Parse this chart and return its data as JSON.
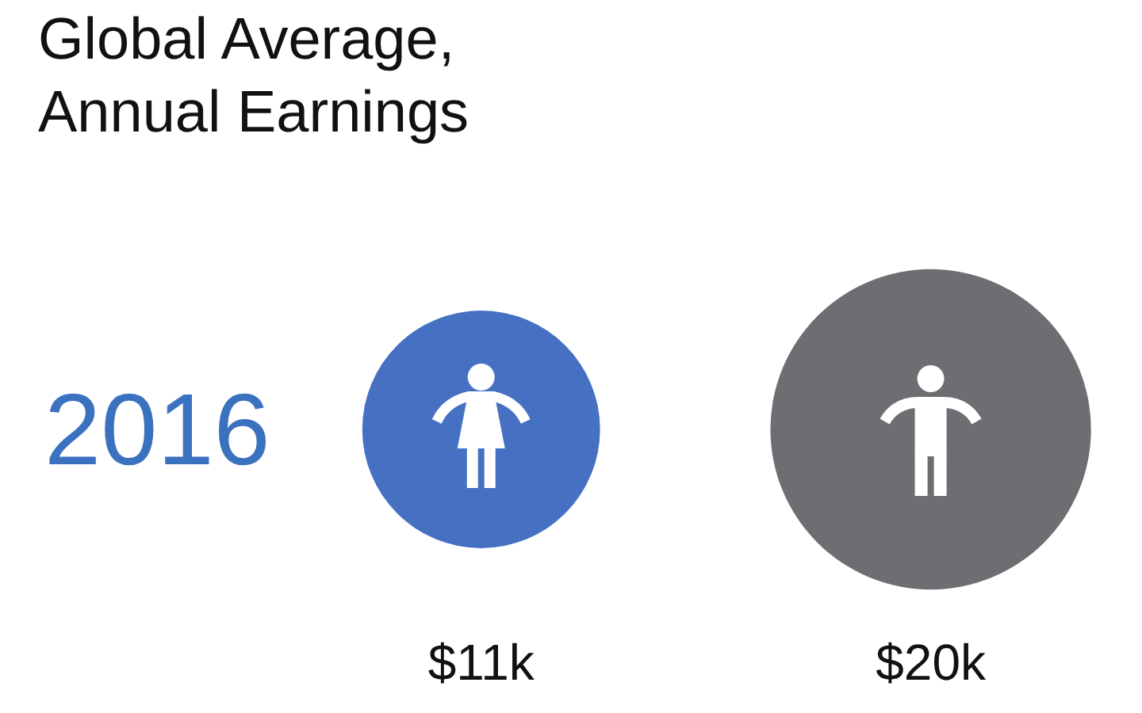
{
  "chart_data": {
    "type": "other",
    "title": "Global Average, Annual Earnings",
    "categories": [
      null,
      null
    ],
    "values": [
      11,
      20
    ],
    "value_labels": [
      "$11k",
      "$20k"
    ],
    "colors": [
      "#4670c2",
      "#6e6d71"
    ],
    "annotations": [
      "2016"
    ]
  }
}
